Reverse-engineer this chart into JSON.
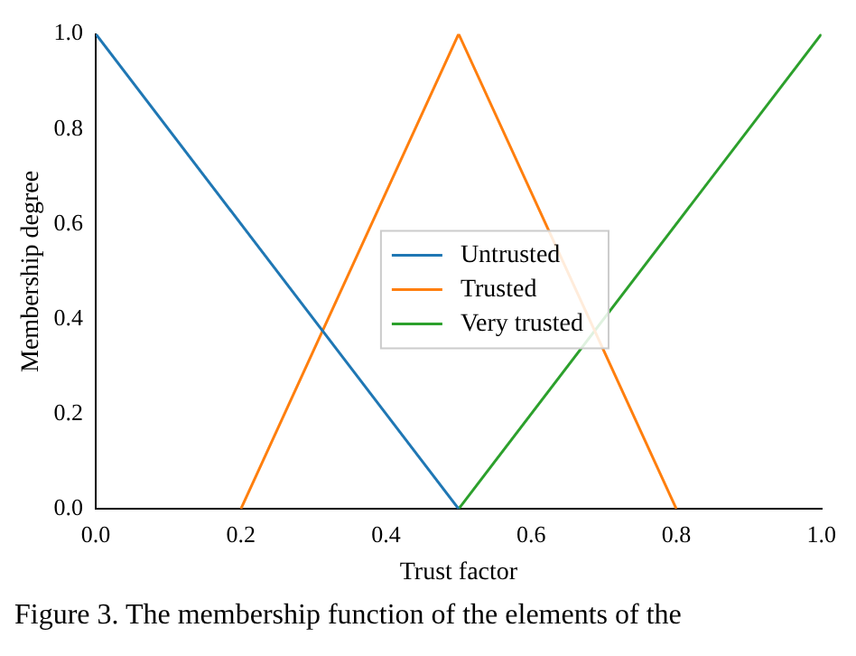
{
  "chart_data": {
    "type": "line",
    "xlabel": "Trust factor",
    "ylabel": "Membership degree",
    "series": [
      {
        "name": "Untrusted",
        "color": "#1f77b4",
        "x": [
          0,
          0.5
        ],
        "values": [
          1,
          0
        ]
      },
      {
        "name": "Trusted",
        "color": "#ff7f0e",
        "x": [
          0.2,
          0.5,
          0.8
        ],
        "values": [
          0,
          1,
          0
        ]
      },
      {
        "name": "Very trusted",
        "color": "#2ca02c",
        "x": [
          0.5,
          1
        ],
        "values": [
          0,
          1
        ]
      }
    ],
    "xlim": [
      0,
      1
    ],
    "xticks": [
      {
        "value": 0,
        "label": "0.0"
      },
      0.2,
      0.4,
      0.6,
      0.8,
      {
        "value": 1,
        "label": "1.0"
      }
    ],
    "ylim": [
      0,
      1
    ],
    "yticks": [
      {
        "value": 0,
        "label": "0.0"
      },
      0.2,
      0.4,
      0.6,
      0.8,
      {
        "value": 1,
        "label": "1.0"
      }
    ],
    "grid": false,
    "legend": "center",
    "marker": "none",
    "line_style": "solid",
    "annotations": [
      "Figure 3. The membership function of the elements of the"
    ]
  }
}
